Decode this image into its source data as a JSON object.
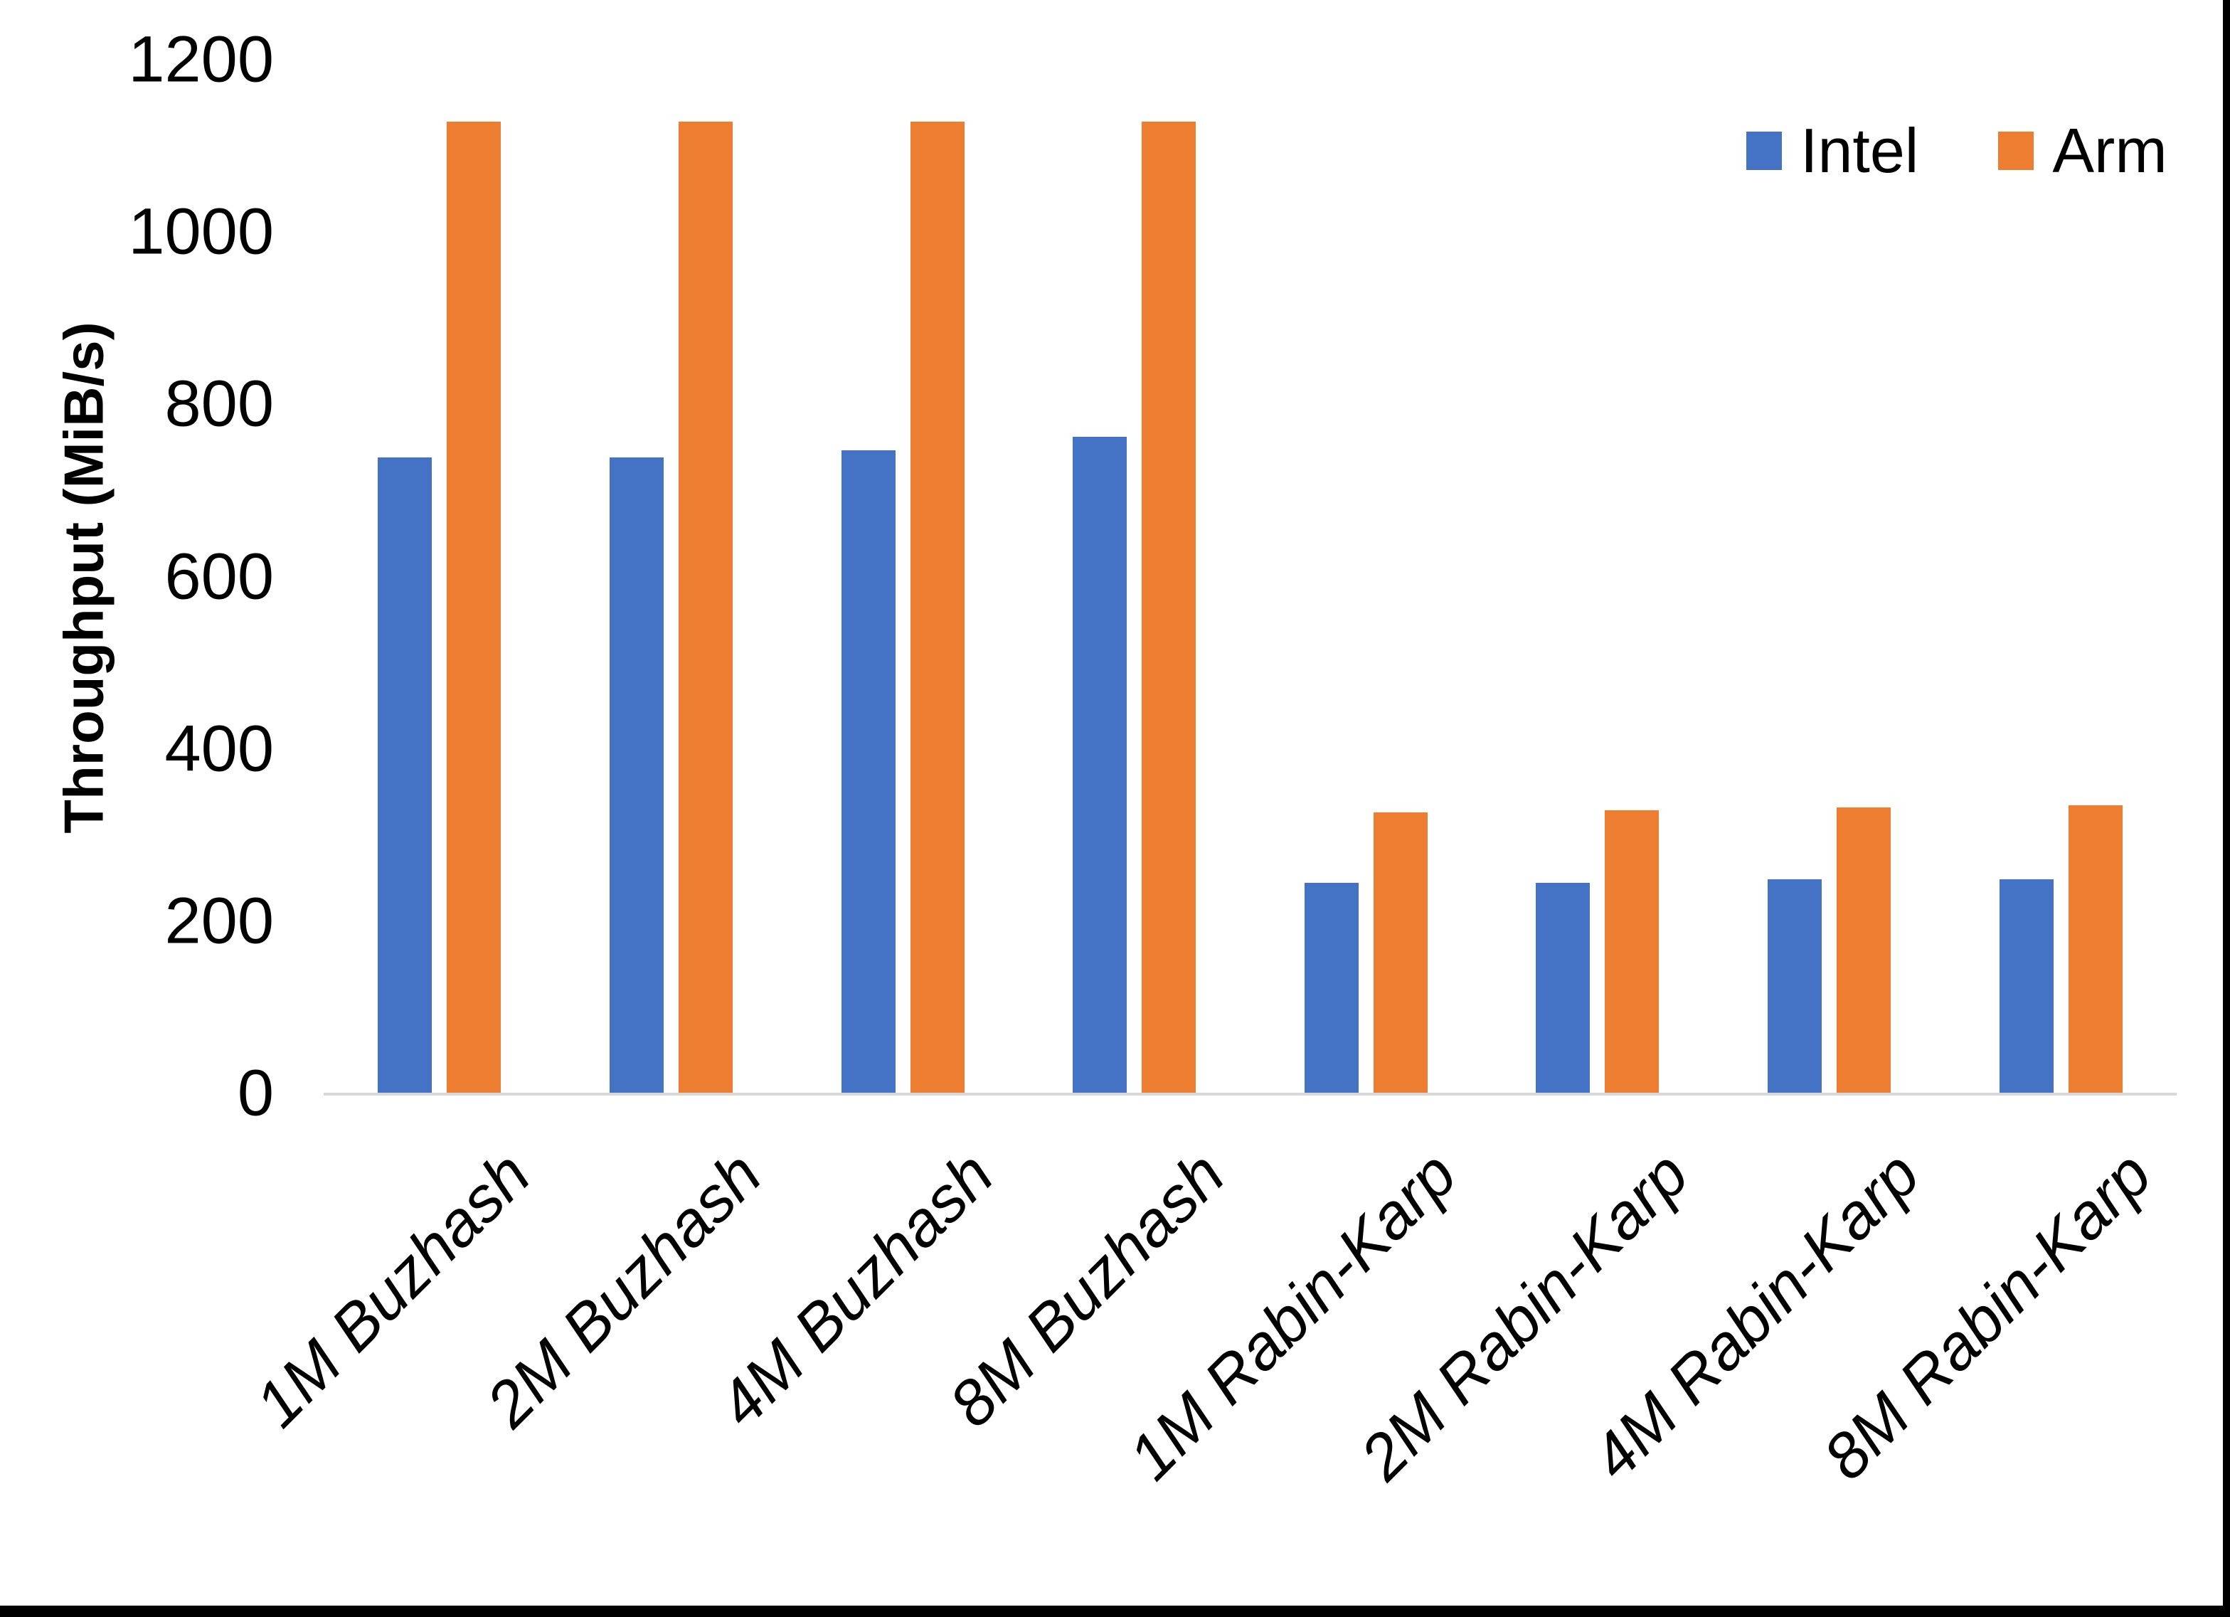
{
  "figure": {
    "background": "#ffffff",
    "border_color": "#000000",
    "text_color": "#000000",
    "axis_line_color": "#d9d9d9"
  },
  "chart_data": {
    "type": "bar",
    "title": "",
    "xlabel": "",
    "ylabel": "Throughput (MiB/s)",
    "ylim": [
      0,
      1200
    ],
    "yticks": [
      0,
      200,
      400,
      600,
      800,
      1000,
      1200
    ],
    "grid": false,
    "legend_position": "top-right",
    "categories": [
      "1M Buzhash",
      "2M Buzhash",
      "4M Buzhash",
      "8M Buzhash",
      "1M Rabin-Karp",
      "2M Rabin-Karp",
      "4M Rabin-Karp",
      "8M Rabin-Karp"
    ],
    "series": [
      {
        "name": "Intel",
        "color": "#4472C4",
        "values": [
          740,
          740,
          748,
          764,
          246,
          246,
          250,
          250
        ]
      },
      {
        "name": "Arm",
        "color": "#ED7D31",
        "values": [
          1130,
          1130,
          1130,
          1130,
          328,
          330,
          334,
          336
        ]
      }
    ]
  }
}
